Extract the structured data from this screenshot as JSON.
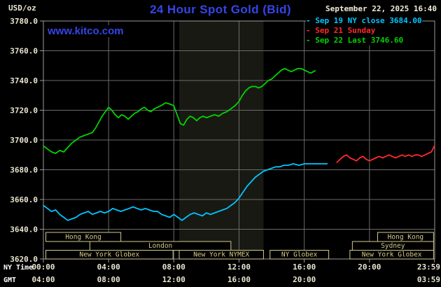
{
  "header": {
    "units": "USD/oz",
    "title": "24 Hour Spot Gold (Bid)",
    "datetime": "September 22, 2025 16:40",
    "website": "www.kitco.com"
  },
  "legend": {
    "items": [
      {
        "marker": "-",
        "label": "Sep 19 NY close 3684.00",
        "color": "#00c6ff"
      },
      {
        "marker": "-",
        "label": "Sep 21 Sunday",
        "color": "#ff2a2a"
      },
      {
        "marker": "-",
        "label": "Sep 22 Last 3746.60",
        "color": "#00d400"
      }
    ]
  },
  "chart_data": {
    "type": "line",
    "title": "24 Hour Spot Gold (Bid)",
    "ylabel": "USD/oz",
    "xlabel_rows": [
      "NY Time",
      "GMT"
    ],
    "ylim": [
      3620,
      3780
    ],
    "xlim": [
      0,
      24
    ],
    "grid": true,
    "style": {
      "background": "#000000",
      "grid": "#6a6a6a",
      "border": "#9a9a9a",
      "axis_text": "#eae5d0",
      "session": "#d4ca8e"
    },
    "y_ticks": [
      "3780.0",
      "3760.0",
      "3740.0",
      "3720.0",
      "3700.0",
      "3680.0",
      "3660.0",
      "3640.0",
      "3620.0"
    ],
    "x_ticks": {
      "hours": [
        0,
        4,
        8,
        12,
        16,
        20,
        23.9833
      ],
      "ny": [
        "00:00",
        "04:00",
        "08:00",
        "12:00",
        "16:00",
        "20:00",
        "23:59"
      ],
      "gmt": [
        "04:00",
        "08:00",
        "12:00",
        "16:00",
        "20:00",
        "",
        "03:59"
      ]
    },
    "shaded_region": {
      "start_hour": 8.33,
      "end_hour": 13.5,
      "color": "#191913"
    },
    "series": [
      {
        "id": "sep19",
        "name": "Sep 19 NY close 3684.00",
        "color": "#00c6ff",
        "points": [
          [
            0,
            3656
          ],
          [
            0.25,
            3654
          ],
          [
            0.5,
            3652
          ],
          [
            0.75,
            3653
          ],
          [
            1,
            3650
          ],
          [
            1.25,
            3648
          ],
          [
            1.5,
            3646
          ],
          [
            1.75,
            3647
          ],
          [
            2,
            3648
          ],
          [
            2.25,
            3650
          ],
          [
            2.5,
            3651
          ],
          [
            2.75,
            3652
          ],
          [
            3,
            3650
          ],
          [
            3.25,
            3651
          ],
          [
            3.5,
            3652
          ],
          [
            3.75,
            3651
          ],
          [
            4,
            3652
          ],
          [
            4.25,
            3654
          ],
          [
            4.5,
            3653
          ],
          [
            4.75,
            3652
          ],
          [
            5,
            3653
          ],
          [
            5.25,
            3654
          ],
          [
            5.5,
            3655
          ],
          [
            5.75,
            3654
          ],
          [
            6,
            3653
          ],
          [
            6.25,
            3654
          ],
          [
            6.5,
            3653
          ],
          [
            6.75,
            3652
          ],
          [
            7,
            3652
          ],
          [
            7.25,
            3650
          ],
          [
            7.5,
            3649
          ],
          [
            7.75,
            3648
          ],
          [
            8,
            3650
          ],
          [
            8.25,
            3648
          ],
          [
            8.5,
            3646
          ],
          [
            8.75,
            3648
          ],
          [
            9,
            3650
          ],
          [
            9.25,
            3651
          ],
          [
            9.5,
            3650
          ],
          [
            9.75,
            3649
          ],
          [
            10,
            3651
          ],
          [
            10.25,
            3650
          ],
          [
            10.5,
            3651
          ],
          [
            10.75,
            3652
          ],
          [
            11,
            3653
          ],
          [
            11.25,
            3654
          ],
          [
            11.5,
            3656
          ],
          [
            11.75,
            3658
          ],
          [
            12,
            3661
          ],
          [
            12.25,
            3665
          ],
          [
            12.5,
            3669
          ],
          [
            12.75,
            3672
          ],
          [
            13,
            3675
          ],
          [
            13.25,
            3677
          ],
          [
            13.5,
            3679
          ],
          [
            13.75,
            3680
          ],
          [
            14,
            3681
          ],
          [
            14.25,
            3682
          ],
          [
            14.5,
            3682
          ],
          [
            14.75,
            3683
          ],
          [
            15,
            3683
          ],
          [
            15.33,
            3684
          ],
          [
            15.67,
            3683
          ],
          [
            16,
            3684
          ],
          [
            16.33,
            3684
          ],
          [
            16.67,
            3684
          ],
          [
            17,
            3684
          ],
          [
            17.4,
            3684
          ]
        ]
      },
      {
        "id": "sep21",
        "name": "Sep 21 Sunday",
        "color": "#ff2a2a",
        "points": [
          [
            18,
            3685
          ],
          [
            18.2,
            3687
          ],
          [
            18.4,
            3689
          ],
          [
            18.6,
            3690
          ],
          [
            18.8,
            3688
          ],
          [
            19,
            3687
          ],
          [
            19.2,
            3686
          ],
          [
            19.4,
            3688
          ],
          [
            19.6,
            3689
          ],
          [
            19.8,
            3687
          ],
          [
            20,
            3686
          ],
          [
            20.2,
            3687
          ],
          [
            20.4,
            3688
          ],
          [
            20.6,
            3689
          ],
          [
            20.8,
            3688
          ],
          [
            21,
            3689
          ],
          [
            21.2,
            3690
          ],
          [
            21.4,
            3689
          ],
          [
            21.6,
            3688
          ],
          [
            21.8,
            3689
          ],
          [
            22,
            3690
          ],
          [
            22.2,
            3689
          ],
          [
            22.4,
            3690
          ],
          [
            22.6,
            3689
          ],
          [
            22.8,
            3690
          ],
          [
            23,
            3690
          ],
          [
            23.2,
            3689
          ],
          [
            23.4,
            3690
          ],
          [
            23.6,
            3691
          ],
          [
            23.8,
            3692
          ],
          [
            23.98,
            3696
          ]
        ]
      },
      {
        "id": "sep22",
        "name": "Sep 22 Last 3746.60",
        "color": "#00d400",
        "points": [
          [
            0,
            3696
          ],
          [
            0.25,
            3694
          ],
          [
            0.5,
            3692
          ],
          [
            0.75,
            3691
          ],
          [
            1,
            3693
          ],
          [
            1.25,
            3692
          ],
          [
            1.5,
            3695
          ],
          [
            1.75,
            3698
          ],
          [
            2,
            3700
          ],
          [
            2.25,
            3702
          ],
          [
            2.5,
            3703
          ],
          [
            2.75,
            3704
          ],
          [
            3,
            3705
          ],
          [
            3.2,
            3708
          ],
          [
            3.4,
            3712
          ],
          [
            3.6,
            3716
          ],
          [
            3.8,
            3719
          ],
          [
            4,
            3722
          ],
          [
            4.2,
            3720
          ],
          [
            4.4,
            3717
          ],
          [
            4.6,
            3715
          ],
          [
            4.8,
            3717
          ],
          [
            5,
            3716
          ],
          [
            5.2,
            3714
          ],
          [
            5.4,
            3716
          ],
          [
            5.6,
            3718
          ],
          [
            5.8,
            3719
          ],
          [
            6,
            3721
          ],
          [
            6.2,
            3722
          ],
          [
            6.4,
            3720
          ],
          [
            6.6,
            3719
          ],
          [
            6.8,
            3721
          ],
          [
            7,
            3722
          ],
          [
            7.2,
            3723
          ],
          [
            7.5,
            3725
          ],
          [
            7.8,
            3724
          ],
          [
            8,
            3723
          ],
          [
            8.2,
            3717
          ],
          [
            8.4,
            3711
          ],
          [
            8.6,
            3710
          ],
          [
            8.8,
            3714
          ],
          [
            9,
            3716
          ],
          [
            9.2,
            3715
          ],
          [
            9.4,
            3713
          ],
          [
            9.6,
            3715
          ],
          [
            9.8,
            3716
          ],
          [
            10,
            3715
          ],
          [
            10.25,
            3716
          ],
          [
            10.5,
            3717
          ],
          [
            10.75,
            3716
          ],
          [
            11,
            3718
          ],
          [
            11.25,
            3719
          ],
          [
            11.5,
            3721
          ],
          [
            11.75,
            3723
          ],
          [
            12,
            3726
          ],
          [
            12.2,
            3730
          ],
          [
            12.4,
            3733
          ],
          [
            12.6,
            3735
          ],
          [
            12.8,
            3736
          ],
          [
            13,
            3736
          ],
          [
            13.2,
            3735
          ],
          [
            13.4,
            3736
          ],
          [
            13.6,
            3738
          ],
          [
            13.8,
            3740
          ],
          [
            14,
            3741
          ],
          [
            14.2,
            3743
          ],
          [
            14.4,
            3745
          ],
          [
            14.6,
            3747
          ],
          [
            14.8,
            3748
          ],
          [
            15,
            3747
          ],
          [
            15.2,
            3746
          ],
          [
            15.4,
            3747
          ],
          [
            15.6,
            3748
          ],
          [
            15.8,
            3748
          ],
          [
            16,
            3747
          ],
          [
            16.2,
            3746
          ],
          [
            16.4,
            3745
          ],
          [
            16.67,
            3746.6
          ]
        ]
      }
    ],
    "sessions": [
      {
        "row": 0,
        "label": "Hong Kong",
        "start_hour": 0.15,
        "end_hour": 4.75
      },
      {
        "row": 0,
        "label": "Hong Kong",
        "start_hour": 20.5,
        "end_hour": 23.93
      },
      {
        "row": 1,
        "label": "London",
        "start_hour": 2.85,
        "end_hour": 11.5
      },
      {
        "row": 1,
        "label": "Sydney",
        "start_hour": 18.95,
        "end_hour": 23.93
      },
      {
        "row": 2,
        "label": "New York Globex",
        "start_hour": 0.15,
        "end_hour": 7.95
      },
      {
        "row": 2,
        "label": "New York NYMEX",
        "start_hour": 8.33,
        "end_hour": 13.5
      },
      {
        "row": 2,
        "label": "NY Globex",
        "start_hour": 13.9,
        "end_hour": 17.5
      },
      {
        "row": 2,
        "label": "New York Globex",
        "start_hour": 18.8,
        "end_hour": 23.93
      }
    ]
  }
}
